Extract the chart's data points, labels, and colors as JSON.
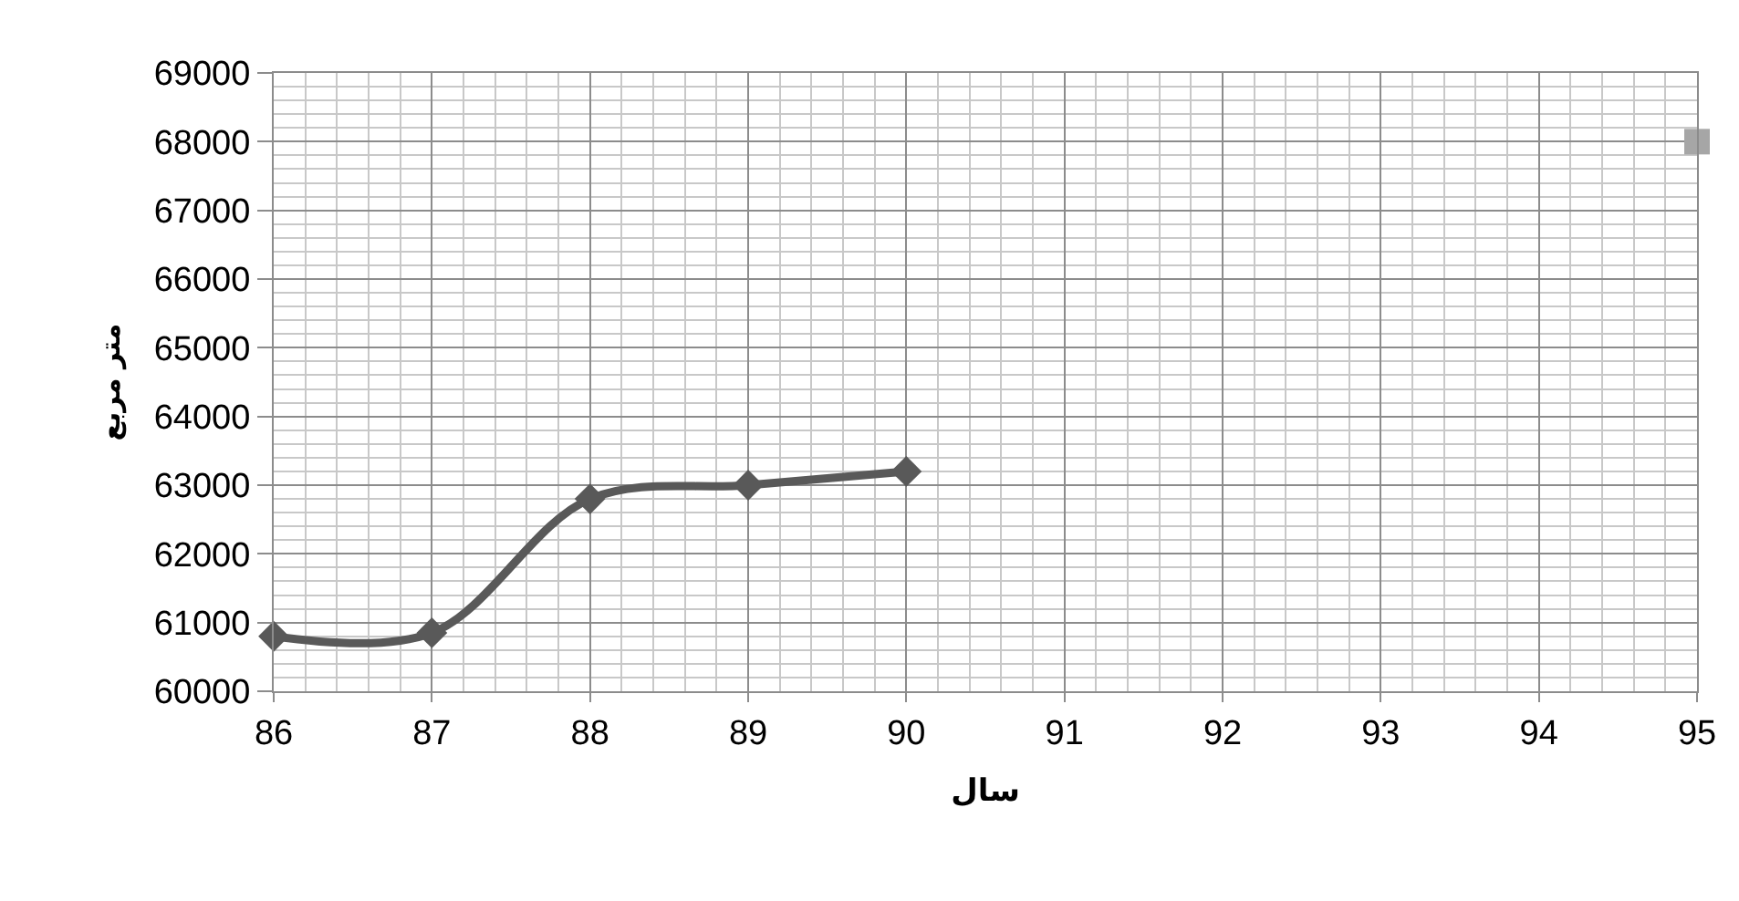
{
  "chart_data": {
    "type": "line",
    "xlabel": "سال",
    "ylabel": "متر مربع",
    "x": [
      86,
      87,
      88,
      89,
      90
    ],
    "series": [
      {
        "color": "#595959",
        "values": [
          60800,
          60850,
          62800,
          63000,
          63200
        ],
        "marker": "diamond",
        "line_style": "solid"
      },
      {
        "type": "scatter",
        "color": "#a6a6a6",
        "x": [
          95
        ],
        "values": [
          68000
        ],
        "marker": "square"
      }
    ],
    "xlim": [
      86,
      95
    ],
    "xticks": [
      86,
      87,
      88,
      89,
      90,
      91,
      92,
      93,
      94,
      95
    ],
    "ylim": [
      60000,
      69000
    ],
    "yticks": [
      60000,
      61000,
      62000,
      63000,
      64000,
      65000,
      66000,
      67000,
      68000,
      69000
    ],
    "grid": true
  }
}
